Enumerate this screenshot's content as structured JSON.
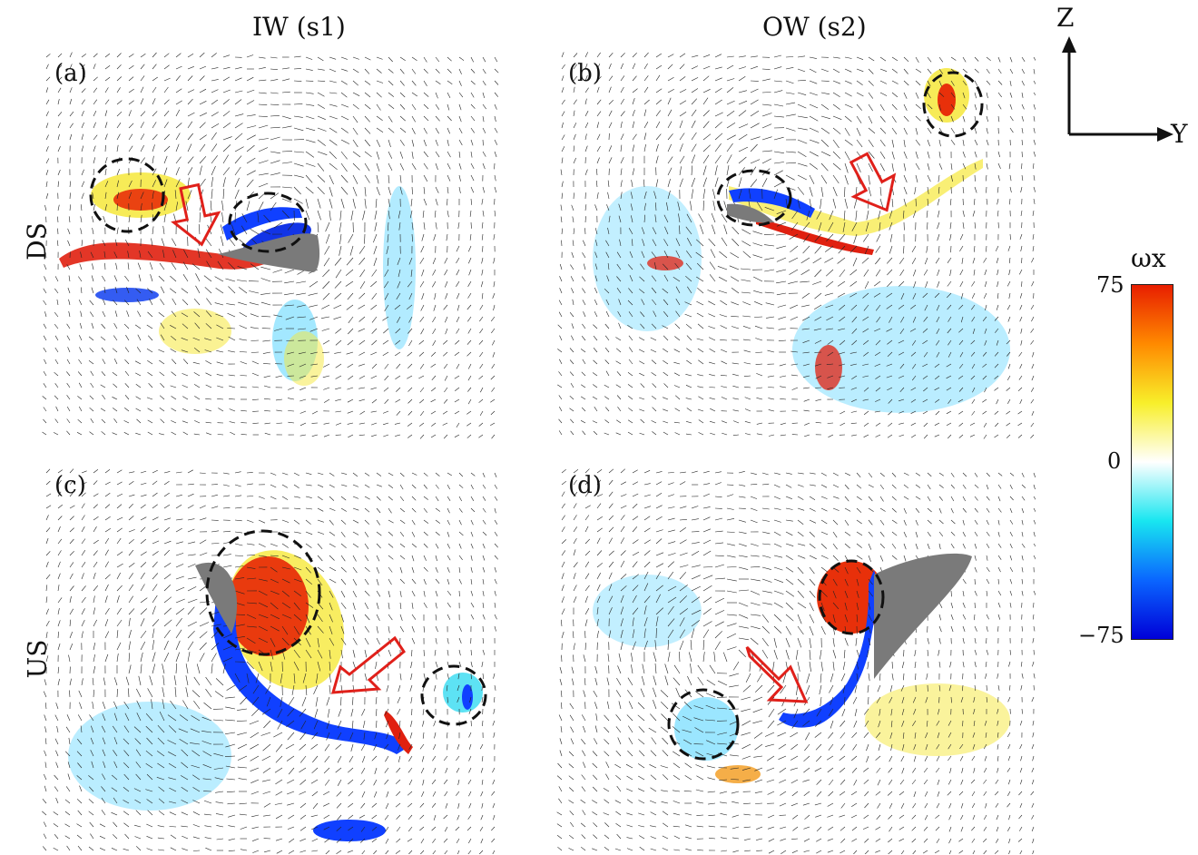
{
  "columns": [
    {
      "label": "IW (s1)"
    },
    {
      "label": "OW (s2)"
    }
  ],
  "rows": [
    {
      "label": "DS"
    },
    {
      "label": "US"
    }
  ],
  "panels": [
    {
      "id": "(a)"
    },
    {
      "id": "(b)"
    },
    {
      "id": "(c)"
    },
    {
      "id": "(d)"
    }
  ],
  "axes": {
    "z": "Z",
    "y": "Y"
  },
  "colorbar": {
    "title": "ωx",
    "max_label": "75",
    "mid_label": "0",
    "min_label": "−75",
    "stops": [
      "#0000d8",
      "#0a66ff",
      "#18e6f0",
      "#ffffff",
      "#f8ef2a",
      "#ff8a00",
      "#e81e00"
    ]
  },
  "colors": {
    "vortex_marker": "#111111",
    "arrow_outline": "#e0201a",
    "wing": "#7a7a7a"
  }
}
